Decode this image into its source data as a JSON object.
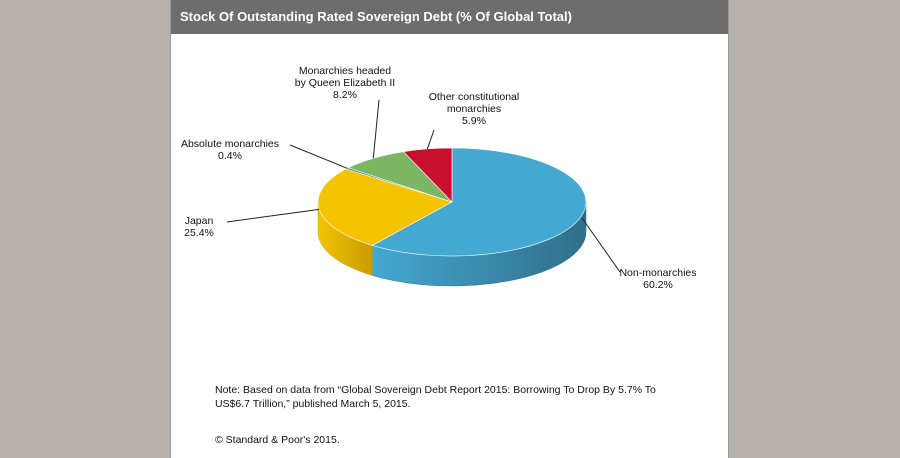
{
  "chart_data": {
    "type": "pie",
    "title": "Stock Of Outstanding Rated Sovereign Debt (% Of Global Total)",
    "slices": [
      {
        "label": "Non-monarchies",
        "value": 60.2,
        "value_label": "60.2%",
        "color": "#45a8d1",
        "side_color": "#2f6f8a"
      },
      {
        "label": "Japan",
        "value": 25.4,
        "value_label": "25.4%",
        "color": "#f5c400",
        "side_color": "#c79c00"
      },
      {
        "label": "Absolute monarchies",
        "value": 0.4,
        "value_label": "0.4%",
        "color": "#2b6f8a",
        "side_color": "#1f5366"
      },
      {
        "label": "Monarchies headed by Queen Elizabeth II",
        "label_lines": [
          "Monarchies headed",
          "by Queen Elizabeth II"
        ],
        "value": 8.2,
        "value_label": "8.2%",
        "color": "#7cb663",
        "side_color": "#5a8a45"
      },
      {
        "label": "Other constitutional monarchies",
        "label_lines": [
          "Other constitutional",
          "monarchies"
        ],
        "value": 5.9,
        "value_label": "5.9%",
        "color": "#c8102e",
        "side_color": "#8e0b21"
      }
    ],
    "style": "3d"
  },
  "note": {
    "line1": "Note: Based on data from “Global Sovereign Debt Report 2015: Borrowing To Drop By 5.7% To",
    "line2": "US$6.7 Trillion,” published March 5, 2015."
  },
  "copyright": "© Standard & Poor's 2015."
}
